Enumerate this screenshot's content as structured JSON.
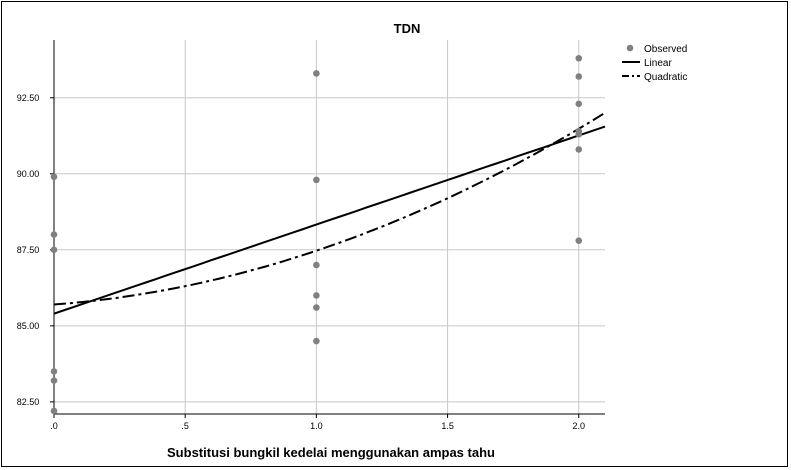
{
  "chart_data": {
    "type": "scatter",
    "title": "TDN",
    "xlabel": "Substitusi bungkil kedelai menggunakan ampas tahu",
    "ylabel": "",
    "xlim": [
      0,
      2.1
    ],
    "ylim": [
      82.1,
      94.4
    ],
    "x_ticks": [
      ".0",
      ".5",
      "1.0",
      "1.5",
      "2.0"
    ],
    "y_ticks": [
      "82.50",
      "85.00",
      "87.50",
      "90.00",
      "92.50"
    ],
    "grid": true,
    "legend_position": "top-right",
    "series": [
      {
        "name": "Observed",
        "kind": "points",
        "color": "#808080",
        "points": [
          [
            0,
            89.9
          ],
          [
            0,
            88.0
          ],
          [
            0,
            87.5
          ],
          [
            0,
            83.5
          ],
          [
            0,
            83.2
          ],
          [
            0,
            82.2
          ],
          [
            1,
            93.3
          ],
          [
            1,
            89.8
          ],
          [
            1,
            87.0
          ],
          [
            1,
            86.0
          ],
          [
            1,
            85.6
          ],
          [
            1,
            84.5
          ],
          [
            2,
            93.8
          ],
          [
            2,
            93.2
          ],
          [
            2,
            92.3
          ],
          [
            2,
            91.4
          ],
          [
            2,
            91.3
          ],
          [
            2,
            90.8
          ],
          [
            2,
            87.8
          ]
        ]
      },
      {
        "name": "Linear",
        "kind": "line",
        "color": "#000000",
        "dash": "solid",
        "fn": {
          "a": 85.4,
          "b": 2.93,
          "c": 0
        }
      },
      {
        "name": "Quadratic",
        "kind": "line",
        "color": "#000000",
        "dash": "dashdot",
        "fn": {
          "a": 85.7,
          "b": 0.65,
          "c": 1.12
        }
      }
    ]
  }
}
